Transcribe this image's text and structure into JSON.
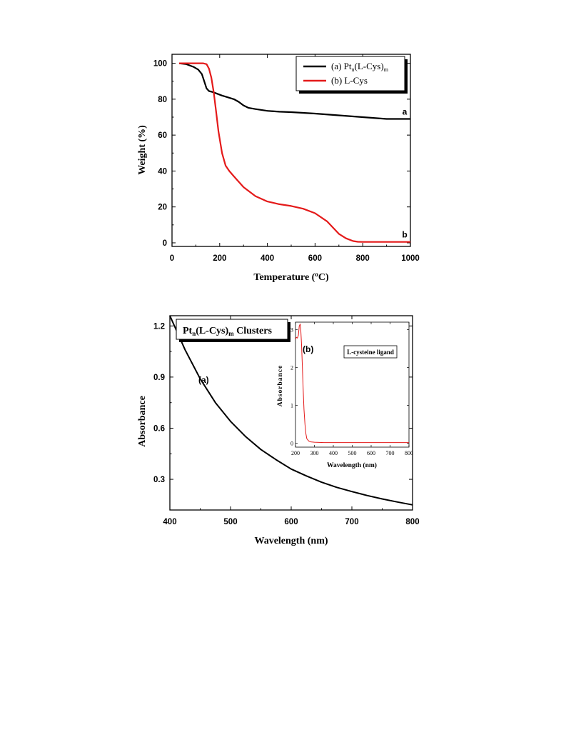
{
  "chart_data": [
    {
      "type": "line",
      "xlabel": "Temperature (°C)",
      "ylabel": "Weight (%)",
      "xlim": [
        0,
        1000
      ],
      "ylim": [
        -2,
        105
      ],
      "xticks": [
        "0",
        "200",
        "400",
        "600",
        "800",
        "1000"
      ],
      "yticks": [
        "0",
        "20",
        "40",
        "60",
        "80",
        "100"
      ],
      "legend_position": "top-right",
      "legend": [
        "(a) Ptn(L-Cys)m",
        "(b) L-Cys"
      ],
      "series": [
        {
          "name": "(a) Ptn(L-Cys)m",
          "label": "a",
          "color": "#000000",
          "x": [
            30,
            60,
            90,
            110,
            125,
            135,
            145,
            155,
            170,
            190,
            210,
            230,
            260,
            280,
            300,
            320,
            350,
            400,
            450,
            500,
            600,
            700,
            800,
            900,
            950,
            1000
          ],
          "y": [
            100,
            99.5,
            98,
            96.5,
            94,
            90,
            86,
            84.5,
            84,
            83,
            82,
            81.2,
            80,
            78.5,
            76.5,
            75.2,
            74.5,
            73.5,
            73,
            72.8,
            72,
            71,
            70,
            69,
            69,
            69
          ]
        },
        {
          "name": "(b) L-Cys",
          "label": "b",
          "color": "#e41a1a",
          "x": [
            30,
            100,
            130,
            145,
            155,
            165,
            175,
            185,
            195,
            210,
            225,
            240,
            260,
            300,
            350,
            400,
            450,
            500,
            550,
            600,
            650,
            700,
            730,
            760,
            780,
            800,
            1000
          ],
          "y": [
            100,
            100,
            100,
            99.5,
            97,
            92,
            84,
            73,
            62,
            50,
            43,
            40,
            37,
            31,
            26,
            23,
            21.5,
            20.5,
            19,
            16.5,
            12,
            5,
            2.5,
            1,
            0.6,
            0.5,
            0.5
          ]
        }
      ]
    },
    {
      "type": "line",
      "xlabel": "Wavelength (nm)",
      "ylabel": "Absorbance",
      "xlim": [
        400,
        800
      ],
      "ylim": [
        0.12,
        1.26
      ],
      "xticks": [
        "400",
        "500",
        "600",
        "700",
        "800"
      ],
      "yticks": [
        "0.3",
        "0.6",
        "0.9",
        "1.2"
      ],
      "title_box": {
        "main": "Pt",
        "sub1": "n",
        "mid": "(L-Cys)",
        "sub2": "m",
        "tail": " Clusters"
      },
      "series": [
        {
          "label": "(a)",
          "color": "#000000",
          "x": [
            400,
            425,
            450,
            475,
            500,
            525,
            550,
            575,
            600,
            625,
            650,
            675,
            700,
            725,
            750,
            775,
            800
          ],
          "y": [
            1.26,
            1.06,
            0.89,
            0.75,
            0.64,
            0.55,
            0.475,
            0.415,
            0.36,
            0.32,
            0.283,
            0.253,
            0.228,
            0.205,
            0.185,
            0.167,
            0.15
          ]
        }
      ],
      "inset": {
        "type": "line",
        "xlabel": "Wavelength (nm)",
        "ylabel": "Absorbance",
        "xlim": [
          200,
          800
        ],
        "ylim": [
          -0.1,
          3.2
        ],
        "xticks": [
          "200",
          "300",
          "400",
          "500",
          "600",
          "700",
          "800"
        ],
        "yticks": [
          "0",
          "1",
          "2",
          "3"
        ],
        "panel_label": "(b)",
        "legend_box": "L-cysteine ligand",
        "series": [
          {
            "color": "#e41a1a",
            "x": [
              200,
              205,
              210,
              215,
              220,
              225,
              228,
              232,
              236,
              240,
              245,
              250,
              255,
              260,
              270,
              280,
              300,
              350,
              400,
              500,
              600,
              700,
              800
            ],
            "y": [
              2.75,
              2.8,
              2.78,
              2.85,
              3.1,
              3.15,
              3.0,
              2.6,
              2.1,
              1.5,
              0.9,
              0.5,
              0.25,
              0.12,
              0.06,
              0.04,
              0.03,
              0.02,
              0.02,
              0.02,
              0.02,
              0.02,
              0.02
            ]
          }
        ]
      }
    }
  ]
}
